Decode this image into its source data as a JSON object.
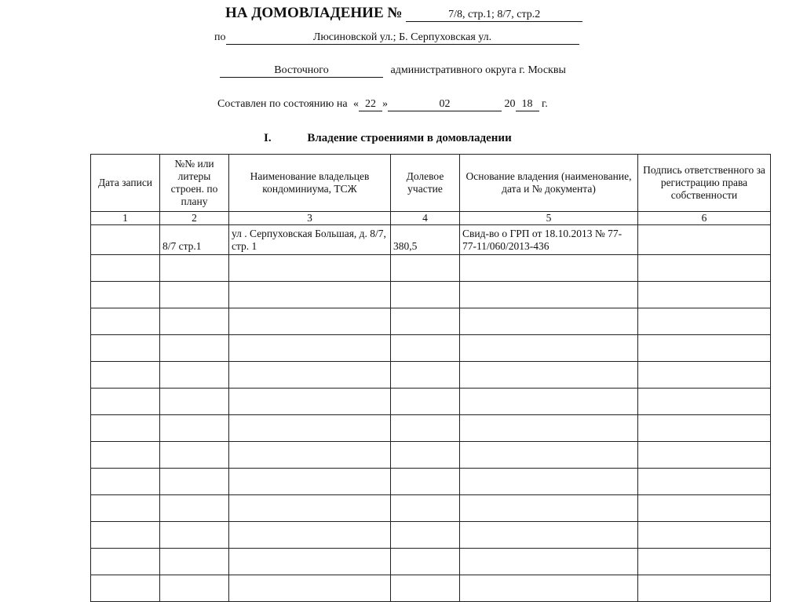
{
  "header": {
    "title": "НА ДОМОВЛАДЕНИЕ №",
    "house_number": "7/8, стр.1; 8/7, стр.2",
    "street_prefix": "по",
    "street": "Люсиновской ул.; Б. Серпуховская ул.",
    "district": "Восточного",
    "district_suffix": "административного округа г. Москвы",
    "date_prefix": "Составлен по состоянию на",
    "day_open": "«",
    "day": "22",
    "day_close": "»",
    "month": "02",
    "year_prefix": "20",
    "year": "18",
    "year_suffix": "г."
  },
  "section": {
    "number": "I.",
    "title": "Владение строениями в домовладении"
  },
  "table": {
    "columns": [
      "Дата записи",
      "№№ или литеры строен. по плану",
      "Наименование владельцев кондоминиума, ТСЖ",
      "Долевое участие",
      "Основание владения (наименование, дата и № документа)",
      "Подпись ответственного за регистрацию права собственности"
    ],
    "column_numbers": [
      "1",
      "2",
      "3",
      "4",
      "5",
      "6"
    ],
    "rows": [
      [
        "",
        "8/7 стр.1",
        "ул . Серпуховская Большая, д. 8/7, стр. 1",
        "380,5",
        "Свид-во о ГРП от 18.10.2013 № 77-77-11/060/2013-436",
        ""
      ]
    ]
  }
}
